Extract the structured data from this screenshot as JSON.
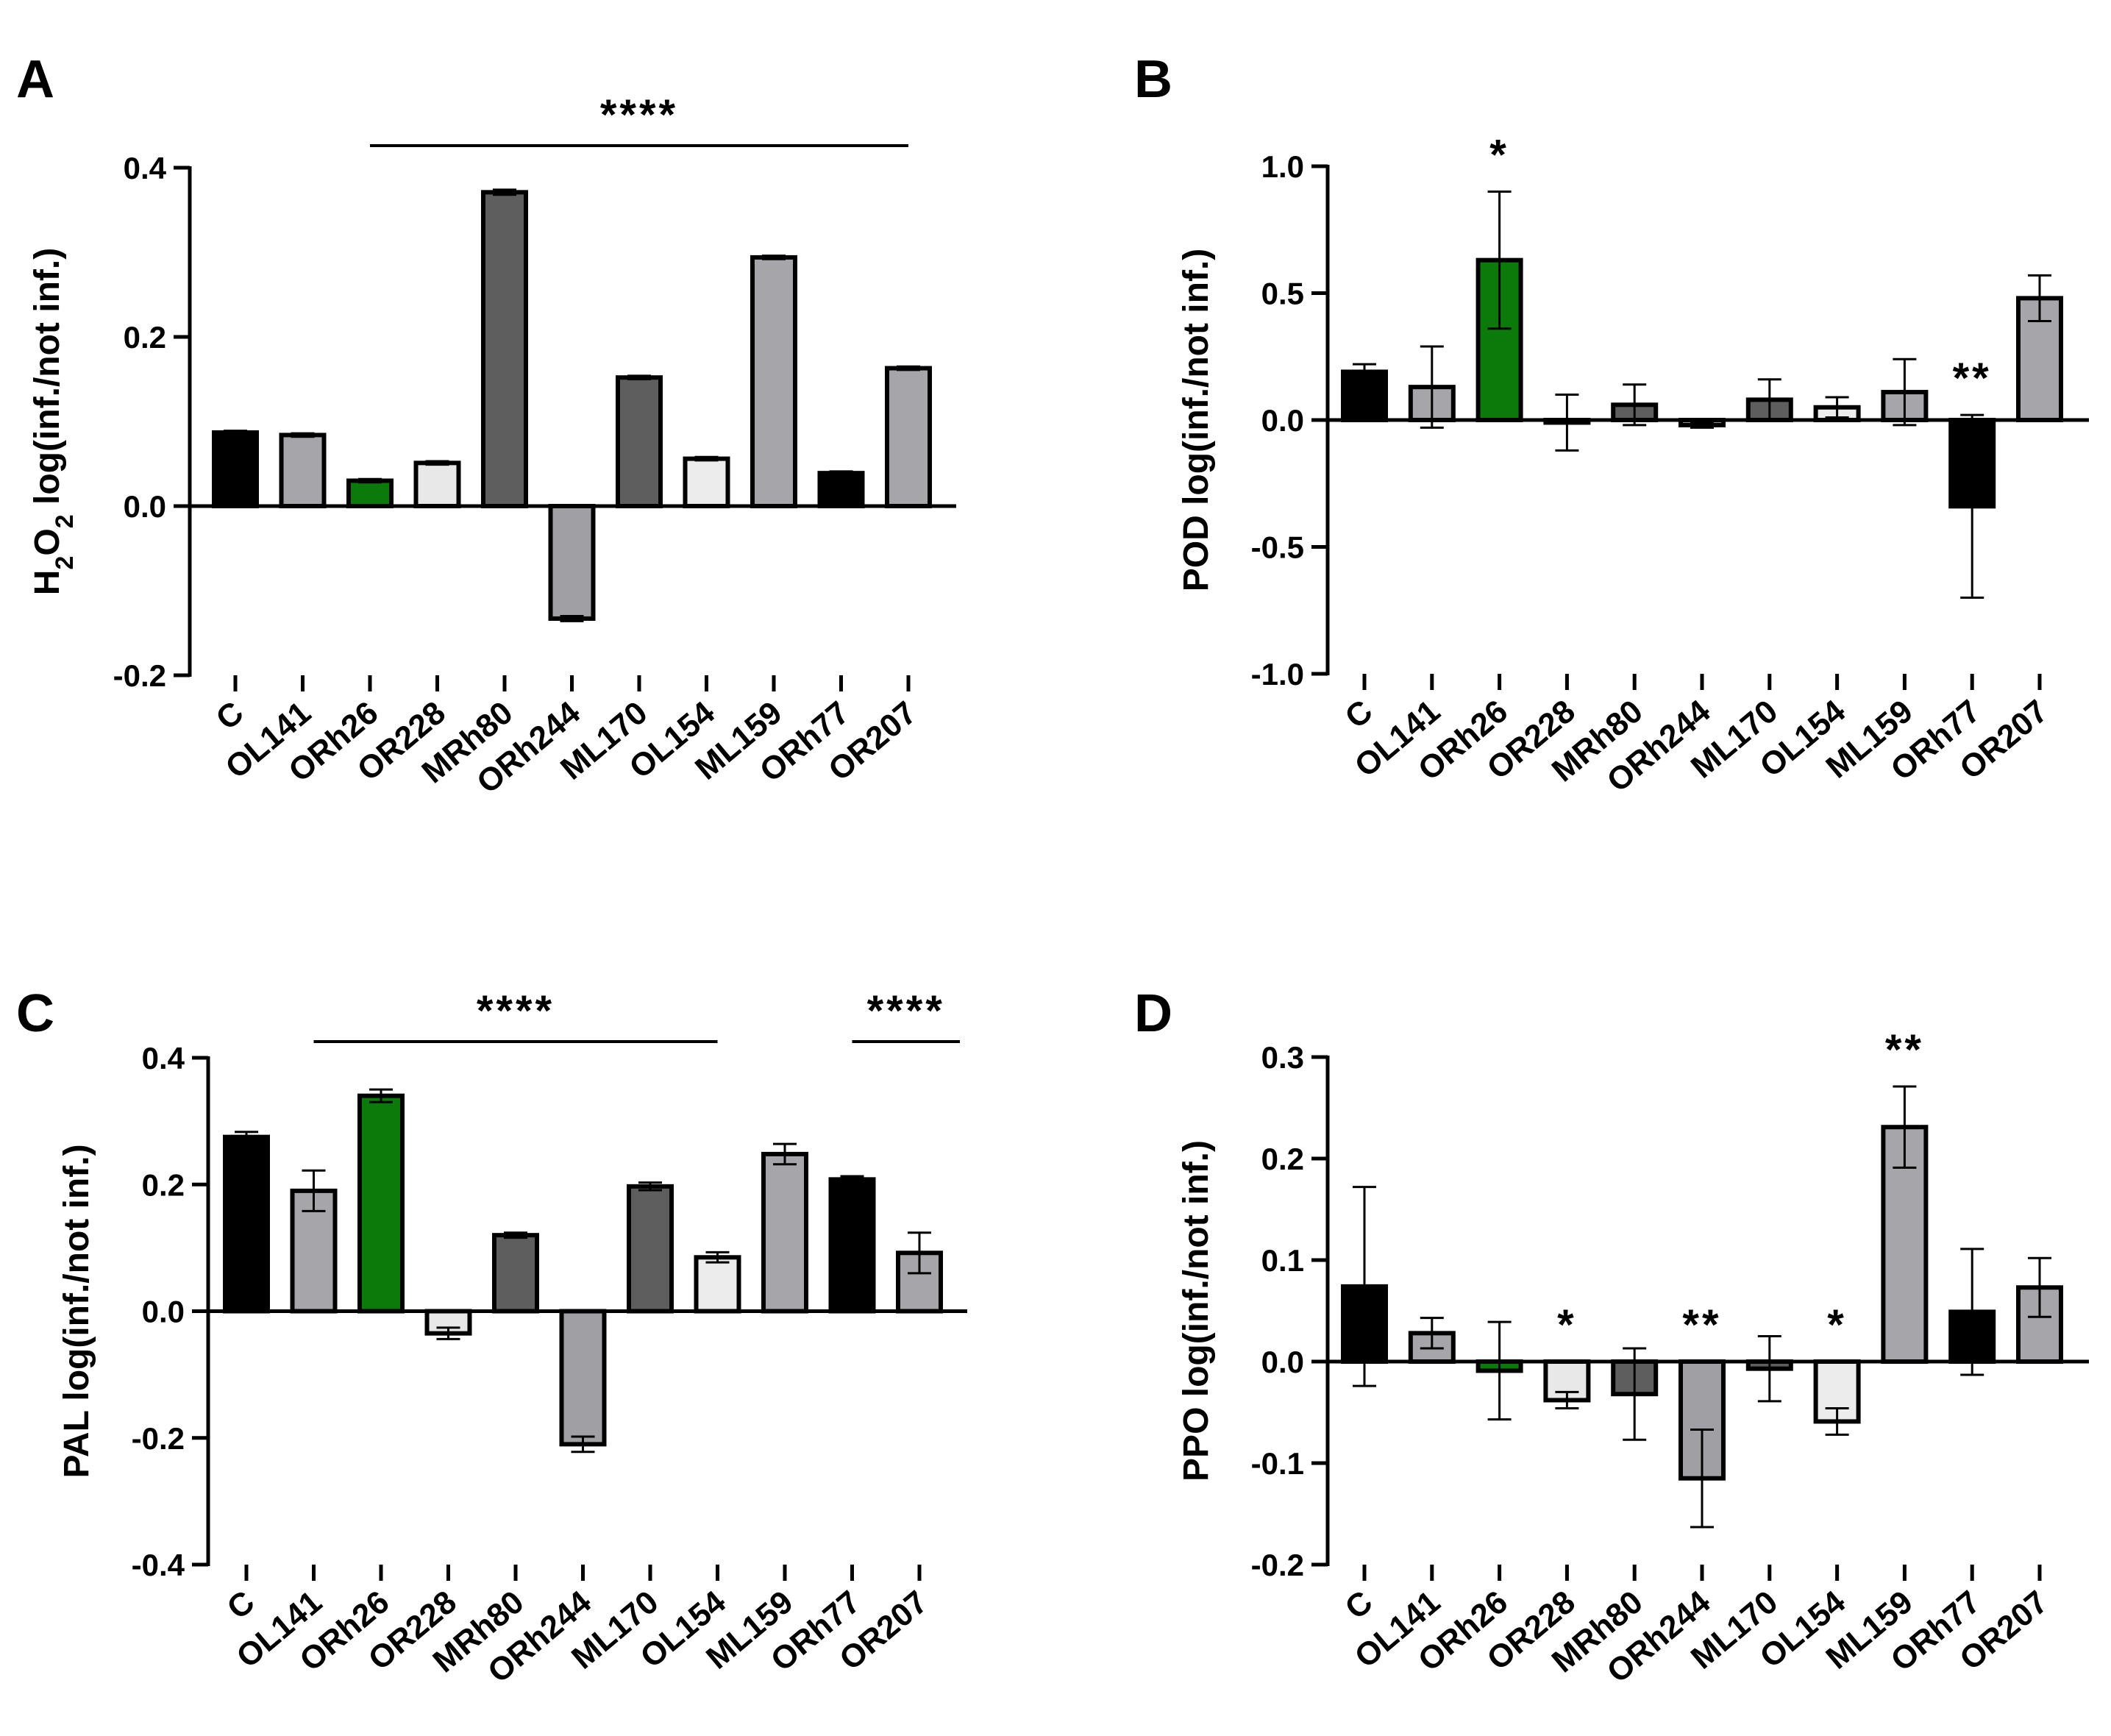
{
  "figure": {
    "categories": [
      "C",
      "OL141",
      "ORh26",
      "OR228",
      "MRh80",
      "ORh244",
      "ML170",
      "OL154",
      "ML159",
      "ORh77",
      "OR207"
    ],
    "bar_colors": [
      "#000000",
      "#a6a6aa",
      "#0b7a0b",
      "#e8e8e8",
      "#5e5e5e",
      "#a0a0a4",
      "#5e5e5e",
      "#ececec",
      "#a6a6aa",
      "#000000",
      "#a6a6aa"
    ]
  },
  "chart_data": [
    {
      "panel": "A",
      "type": "bar",
      "ylabel": "H2O2 log(inf./not inf.)",
      "ylabel_parts": [
        "H",
        "2",
        "O",
        "2",
        " log(inf./not inf.)"
      ],
      "ylim": [
        -0.2,
        0.4
      ],
      "yticks": [
        -0.2,
        0.0,
        0.2,
        0.4
      ],
      "ytick_labels": [
        "-0.2",
        "0.0",
        "0.2",
        "0.4"
      ],
      "values": [
        0.087,
        0.084,
        0.03,
        0.051,
        0.371,
        -0.133,
        0.152,
        0.056,
        0.294,
        0.039,
        0.163
      ],
      "errors": [
        0.002,
        0.002,
        0.002,
        0.002,
        0.003,
        0.003,
        0.002,
        0.002,
        0.002,
        0.002,
        0.002
      ],
      "significance": [
        {
          "text": "****",
          "line_from": "ORh26",
          "line_to": "OR207"
        }
      ]
    },
    {
      "panel": "B",
      "type": "bar",
      "ylabel": "POD log(inf./not inf.)",
      "ylim": [
        -1.0,
        1.0
      ],
      "yticks": [
        -1.0,
        -0.5,
        0.0,
        0.5,
        1.0
      ],
      "ytick_labels": [
        "-1.0",
        "-0.5",
        "0.0",
        "0.5",
        "1.0"
      ],
      "values": [
        0.19,
        0.13,
        0.63,
        -0.01,
        0.06,
        -0.02,
        0.08,
        0.05,
        0.11,
        -0.34,
        0.48
      ],
      "errors": [
        0.03,
        0.16,
        0.27,
        0.11,
        0.08,
        0.01,
        0.08,
        0.04,
        0.13,
        0.36,
        0.09
      ],
      "significance": [
        {
          "text": "*",
          "category": "ORh26"
        },
        {
          "text": "**",
          "category": "ORh77"
        }
      ]
    },
    {
      "panel": "C",
      "type": "bar",
      "ylabel": "PAL log(inf./not inf.)",
      "ylim": [
        -0.4,
        0.4
      ],
      "yticks": [
        -0.4,
        -0.2,
        0.0,
        0.2,
        0.4
      ],
      "ytick_labels": [
        "-0.4",
        "-0.2",
        "0.0",
        "0.2",
        "0.4"
      ],
      "values": [
        0.275,
        0.19,
        0.34,
        -0.035,
        0.12,
        -0.21,
        0.197,
        0.085,
        0.248,
        0.208,
        0.092
      ],
      "errors": [
        0.008,
        0.032,
        0.01,
        0.009,
        0.004,
        0.012,
        0.006,
        0.008,
        0.016,
        0.005,
        0.032
      ],
      "significance": [
        {
          "text": "****",
          "line_from": "OL141",
          "line_to": "OL154"
        },
        {
          "text": "****",
          "line_from": "ORh77",
          "line_to": "OR207+"
        }
      ]
    },
    {
      "panel": "D",
      "type": "bar",
      "ylabel": "PPO log(inf./not inf.)",
      "ylim": [
        -0.2,
        0.3
      ],
      "yticks": [
        -0.2,
        -0.1,
        0.0,
        0.1,
        0.2,
        0.3
      ],
      "ytick_labels": [
        "-0.2",
        "-0.1",
        "0.0",
        "0.1",
        "0.2",
        "0.3"
      ],
      "values": [
        0.074,
        0.028,
        -0.009,
        -0.038,
        -0.032,
        -0.115,
        -0.007,
        -0.059,
        0.231,
        0.049,
        0.073
      ],
      "errors": [
        0.098,
        0.015,
        0.048,
        0.008,
        0.045,
        0.048,
        0.032,
        0.013,
        0.04,
        0.062,
        0.029
      ],
      "significance": [
        {
          "text": "*",
          "category": "OR228"
        },
        {
          "text": "**",
          "category": "ORh244"
        },
        {
          "text": "*",
          "category": "OL154"
        },
        {
          "text": "**",
          "category": "ML159"
        }
      ]
    }
  ]
}
